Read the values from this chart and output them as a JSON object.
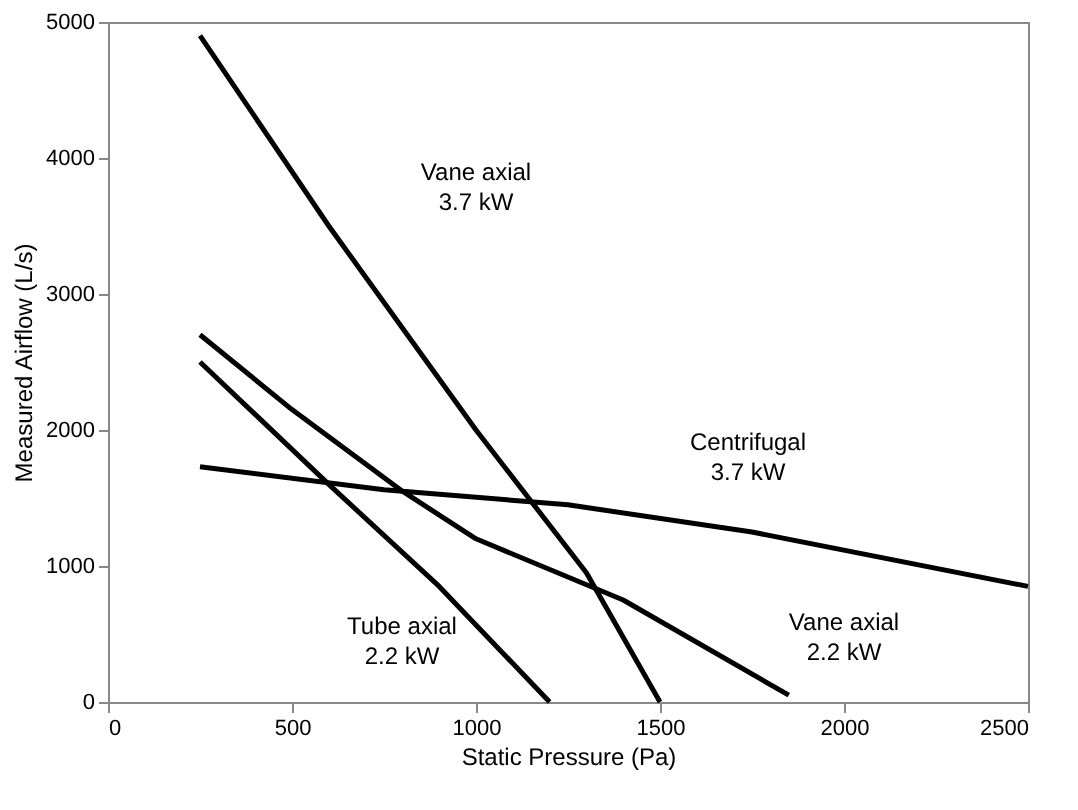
{
  "chart_data": {
    "type": "line",
    "xlabel": "Static Pressure (Pa)",
    "ylabel": "Measured Airflow (L/s)",
    "xlim": [
      0,
      2500
    ],
    "xticks": [
      0,
      500,
      1000,
      1500,
      2000,
      2500
    ],
    "ylim": [
      0,
      5000
    ],
    "yticks": [
      0,
      1000,
      2000,
      3000,
      4000,
      5000
    ],
    "grid": false,
    "marker": "none",
    "line_style": "solid",
    "series": [
      {
        "x": [
          250,
          600,
          1000,
          1300,
          1500
        ],
        "values": [
          4900,
          3500,
          2000,
          950,
          0
        ],
        "color": "#000000"
      },
      {
        "x": [
          250,
          750,
          1250,
          1750,
          2500
        ],
        "values": [
          1730,
          1560,
          1450,
          1250,
          850
        ],
        "color": "#000000"
      },
      {
        "x": [
          250,
          500,
          800,
          1000,
          1400,
          1850
        ],
        "values": [
          2700,
          2150,
          1550,
          1200,
          750,
          50
        ],
        "color": "#000000"
      },
      {
        "x": [
          250,
          600,
          900,
          1200
        ],
        "values": [
          2500,
          1600,
          850,
          0
        ],
        "color": "#000000"
      }
    ],
    "annotations": [
      "Vane axial 3.7 kW",
      "Centrifugal 3.7 kW",
      "Vane axial 2.2 kW",
      "Tube axial 2.2 kW"
    ]
  }
}
